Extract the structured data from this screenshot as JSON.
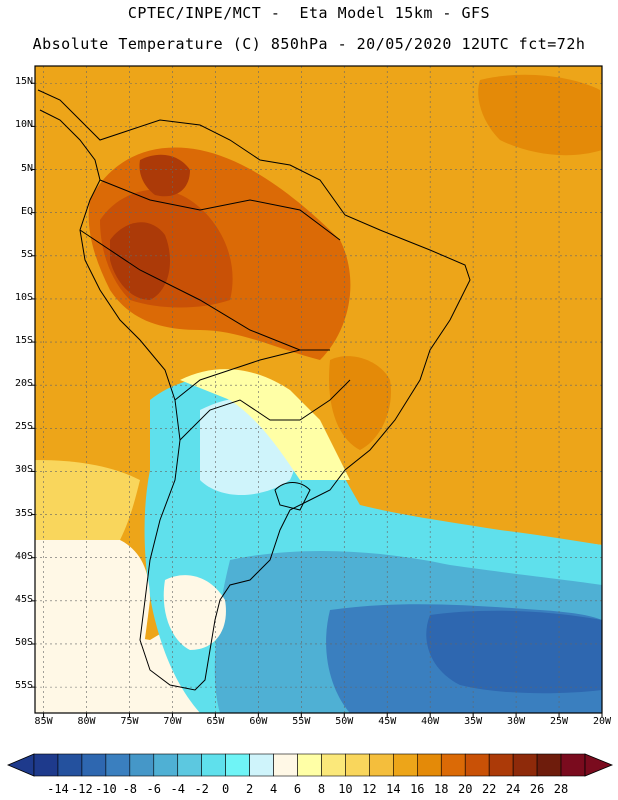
{
  "header": {
    "title_line1": "CPTEC/INPE/MCT -  Eta Model 15km - GFS",
    "title_line2": "Absolute Temperature (C) 850hPa - 20/05/2020 12UTC fct=72h"
  },
  "map": {
    "lat_labels": [
      "15N",
      "10N",
      "5N",
      "EQ",
      "5S",
      "10S",
      "15S",
      "20S",
      "25S",
      "30S",
      "35S",
      "40S",
      "45S",
      "50S",
      "55S"
    ],
    "lat_values": [
      15,
      10,
      5,
      0,
      -5,
      -10,
      -15,
      -20,
      -25,
      -30,
      -35,
      -40,
      -45,
      -50,
      -55
    ],
    "lon_labels": [
      "85W",
      "80W",
      "75W",
      "70W",
      "65W",
      "60W",
      "55W",
      "50W",
      "45W",
      "40W",
      "35W",
      "30W",
      "25W",
      "20W"
    ],
    "lon_values": [
      -85,
      -80,
      -75,
      -70,
      -65,
      -60,
      -55,
      -50,
      -45,
      -40,
      -35,
      -30,
      -25,
      -20
    ],
    "lat_range": [
      -58,
      17
    ],
    "lon_range": [
      -86,
      -20
    ]
  },
  "colorbar": {
    "labels": [
      "-14",
      "-12",
      "-10",
      "-8",
      "-6",
      "-4",
      "-2",
      "0",
      "2",
      "4",
      "6",
      "8",
      "10",
      "12",
      "14",
      "16",
      "18",
      "20",
      "22",
      "24",
      "26",
      "28"
    ],
    "colors": [
      "#1e3a8c",
      "#24519e",
      "#2e67b0",
      "#3a7fbf",
      "#4597c8",
      "#4fb0d4",
      "#5cc8e0",
      "#5fe0ec",
      "#6ff4f6",
      "#cff4fb",
      "#fff8e6",
      "#ffffa6",
      "#fbe87a",
      "#f9d65c",
      "#f4be3c",
      "#eda519",
      "#e48a08",
      "#db6a06",
      "#c95106",
      "#ac3a08",
      "#8e2a0a",
      "#6e1c0c",
      "#7a0b1e"
    ]
  },
  "legend_colors": {
    "cold_deep": "#2e67b0",
    "cold": "#4fb0d4",
    "cyan": "#5fe0ec",
    "pale": "#cff4fb",
    "cream": "#fff8e6",
    "yellow": "#fbe87a",
    "orange": "#eda519",
    "orange_dark": "#db6a06",
    "brown": "#ac3a08",
    "brown_deep": "#8e2a0a"
  }
}
